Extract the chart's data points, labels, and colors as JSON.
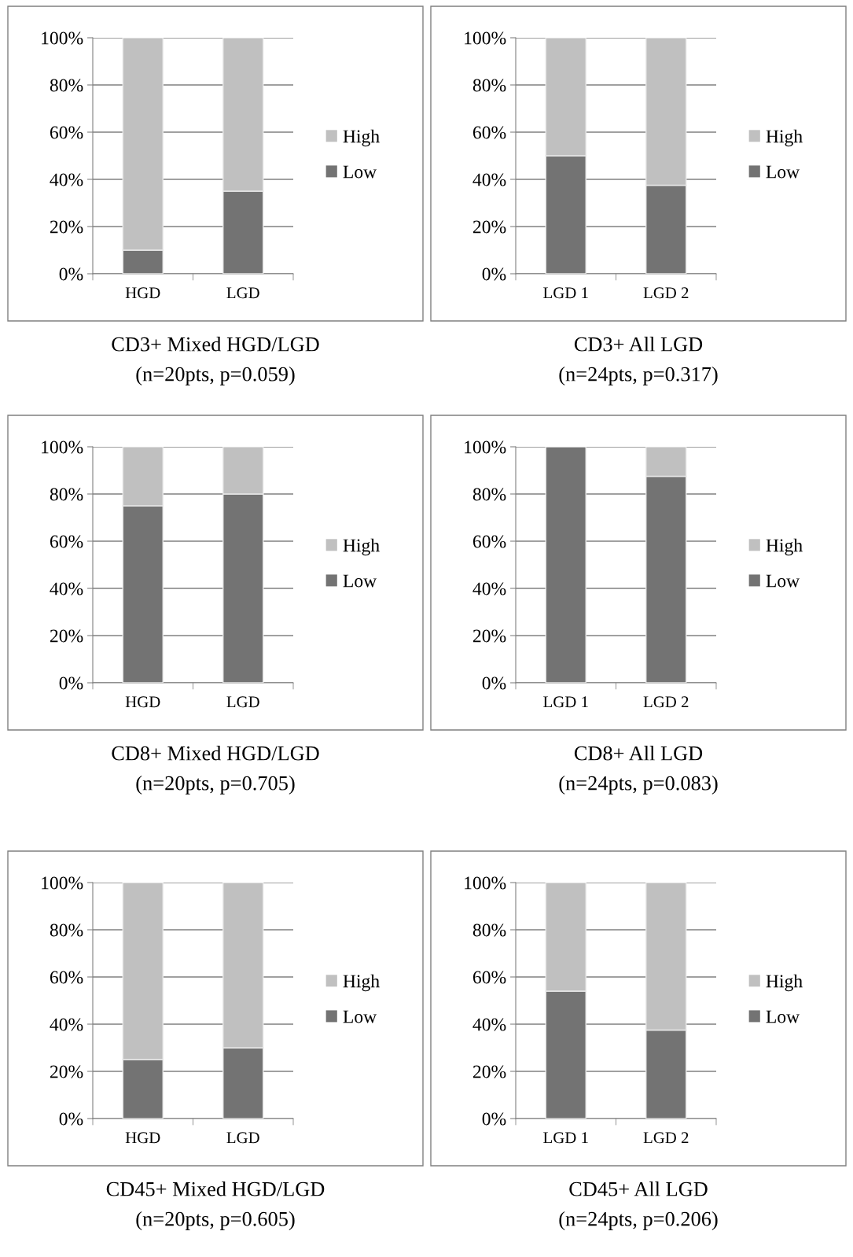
{
  "chart_data": [
    {
      "type": "bar",
      "stacked": true,
      "title": "CD3+ Mixed HGD/LGD",
      "subtitle": "(n=20pts, p=0.059)",
      "categories": [
        "HGD",
        "LGD"
      ],
      "series": [
        {
          "name": "Low",
          "color": "#737373",
          "values": [
            10,
            35
          ]
        },
        {
          "name": "High",
          "color": "#c0c0c0",
          "values": [
            90,
            65
          ]
        }
      ],
      "ylim": [
        0,
        100
      ],
      "yticks": [
        {
          "value": 0,
          "label": "0%"
        },
        {
          "value": 20,
          "label": "20%"
        },
        {
          "value": 40,
          "label": "40%"
        },
        {
          "value": 60,
          "label": "60%"
        },
        {
          "value": 80,
          "label": "80%"
        },
        {
          "value": 100,
          "label": "100%"
        }
      ],
      "grid": "y",
      "legend": "right"
    },
    {
      "type": "bar",
      "stacked": true,
      "title": "CD3+ All LGD",
      "subtitle": "(n=24pts, p=0.317)",
      "categories": [
        "LGD 1",
        "LGD 2"
      ],
      "series": [
        {
          "name": "Low",
          "color": "#737373",
          "values": [
            50,
            37.5
          ]
        },
        {
          "name": "High",
          "color": "#c0c0c0",
          "values": [
            50,
            62.5
          ]
        }
      ],
      "ylim": [
        0,
        100
      ],
      "yticks": [
        {
          "value": 0,
          "label": "0%"
        },
        {
          "value": 20,
          "label": "20%"
        },
        {
          "value": 40,
          "label": "40%"
        },
        {
          "value": 60,
          "label": "60%"
        },
        {
          "value": 80,
          "label": "80%"
        },
        {
          "value": 100,
          "label": "100%"
        }
      ],
      "grid": "y",
      "legend": "right"
    },
    {
      "type": "bar",
      "stacked": true,
      "title": "CD8+ Mixed HGD/LGD",
      "subtitle": "(n=20pts, p=0.705)",
      "categories": [
        "HGD",
        "LGD"
      ],
      "series": [
        {
          "name": "Low",
          "color": "#737373",
          "values": [
            75,
            80
          ]
        },
        {
          "name": "High",
          "color": "#c0c0c0",
          "values": [
            25,
            20
          ]
        }
      ],
      "ylim": [
        0,
        100
      ],
      "yticks": [
        {
          "value": 0,
          "label": "0%"
        },
        {
          "value": 20,
          "label": "20%"
        },
        {
          "value": 40,
          "label": "40%"
        },
        {
          "value": 60,
          "label": "60%"
        },
        {
          "value": 80,
          "label": "80%"
        },
        {
          "value": 100,
          "label": "100%"
        }
      ],
      "grid": "y",
      "legend": "right"
    },
    {
      "type": "bar",
      "stacked": true,
      "title": "CD8+ All LGD",
      "subtitle": "(n=24pts, p=0.083)",
      "categories": [
        "LGD 1",
        "LGD 2"
      ],
      "series": [
        {
          "name": "Low",
          "color": "#737373",
          "values": [
            100,
            87.5
          ]
        },
        {
          "name": "High",
          "color": "#c0c0c0",
          "values": [
            0,
            12.5
          ]
        }
      ],
      "ylim": [
        0,
        100
      ],
      "yticks": [
        {
          "value": 0,
          "label": "0%"
        },
        {
          "value": 20,
          "label": "20%"
        },
        {
          "value": 40,
          "label": "40%"
        },
        {
          "value": 60,
          "label": "60%"
        },
        {
          "value": 80,
          "label": "80%"
        },
        {
          "value": 100,
          "label": "100%"
        }
      ],
      "grid": "y",
      "legend": "right"
    },
    {
      "type": "bar",
      "stacked": true,
      "title": "CD45+ Mixed HGD/LGD",
      "subtitle": "(n=20pts, p=0.605)",
      "categories": [
        "HGD",
        "LGD"
      ],
      "series": [
        {
          "name": "Low",
          "color": "#737373",
          "values": [
            25,
            30
          ]
        },
        {
          "name": "High",
          "color": "#c0c0c0",
          "values": [
            75,
            70
          ]
        }
      ],
      "ylim": [
        0,
        100
      ],
      "yticks": [
        {
          "value": 0,
          "label": "0%"
        },
        {
          "value": 20,
          "label": "20%"
        },
        {
          "value": 40,
          "label": "40%"
        },
        {
          "value": 60,
          "label": "60%"
        },
        {
          "value": 80,
          "label": "80%"
        },
        {
          "value": 100,
          "label": "100%"
        }
      ],
      "grid": "y",
      "legend": "right"
    },
    {
      "type": "bar",
      "stacked": true,
      "title": "CD45+ All LGD",
      "subtitle": "(n=24pts, p=0.206)",
      "categories": [
        "LGD 1",
        "LGD 2"
      ],
      "series": [
        {
          "name": "Low",
          "color": "#737373",
          "values": [
            54,
            37.5
          ]
        },
        {
          "name": "High",
          "color": "#c0c0c0",
          "values": [
            46,
            62.5
          ]
        }
      ],
      "ylim": [
        0,
        100
      ],
      "yticks": [
        {
          "value": 0,
          "label": "0%"
        },
        {
          "value": 20,
          "label": "20%"
        },
        {
          "value": 40,
          "label": "40%"
        },
        {
          "value": 60,
          "label": "60%"
        },
        {
          "value": 80,
          "label": "80%"
        },
        {
          "value": 100,
          "label": "100%"
        }
      ],
      "grid": "y",
      "legend": "right"
    }
  ]
}
